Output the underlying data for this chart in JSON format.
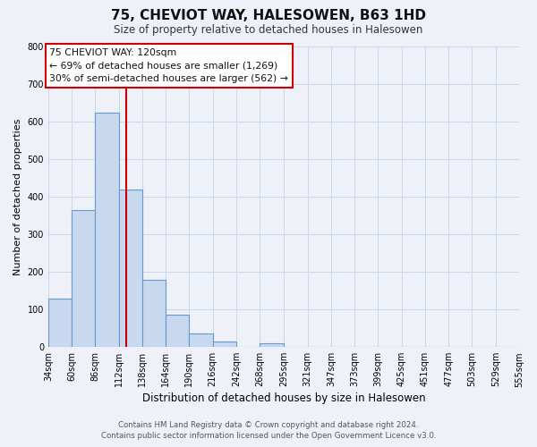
{
  "title": "75, CHEVIOT WAY, HALESOWEN, B63 1HD",
  "subtitle": "Size of property relative to detached houses in Halesowen",
  "xlabel": "Distribution of detached houses by size in Halesowen",
  "ylabel": "Number of detached properties",
  "bar_values": [
    128,
    365,
    623,
    418,
    178,
    85,
    35,
    15,
    0,
    10,
    0,
    0,
    0,
    0,
    0,
    0,
    0,
    0,
    0,
    0
  ],
  "bin_edges": [
    34,
    60,
    86,
    112,
    138,
    164,
    190,
    216,
    242,
    268,
    295,
    321,
    347,
    373,
    399,
    425,
    451,
    477,
    503,
    529,
    555
  ],
  "tick_labels": [
    "34sqm",
    "60sqm",
    "86sqm",
    "112sqm",
    "138sqm",
    "164sqm",
    "190sqm",
    "216sqm",
    "242sqm",
    "268sqm",
    "295sqm",
    "321sqm",
    "347sqm",
    "373sqm",
    "399sqm",
    "425sqm",
    "451sqm",
    "477sqm",
    "503sqm",
    "529sqm",
    "555sqm"
  ],
  "bar_color": "#c8d8ee",
  "bar_edge_color": "#6699cc",
  "vline_x": 120,
  "vline_color": "#cc0000",
  "ylim": [
    0,
    800
  ],
  "yticks": [
    0,
    100,
    200,
    300,
    400,
    500,
    600,
    700,
    800
  ],
  "annotation_title": "75 CHEVIOT WAY: 120sqm",
  "annotation_line1": "← 69% of detached houses are smaller (1,269)",
  "annotation_line2": "30% of semi-detached houses are larger (562) →",
  "annotation_box_color": "#ffffff",
  "annotation_box_edge": "#cc0000",
  "footer1": "Contains HM Land Registry data © Crown copyright and database right 2024.",
  "footer2": "Contains public sector information licensed under the Open Government Licence v3.0.",
  "grid_color": "#cdd8ea",
  "background_color": "#eef2f8"
}
